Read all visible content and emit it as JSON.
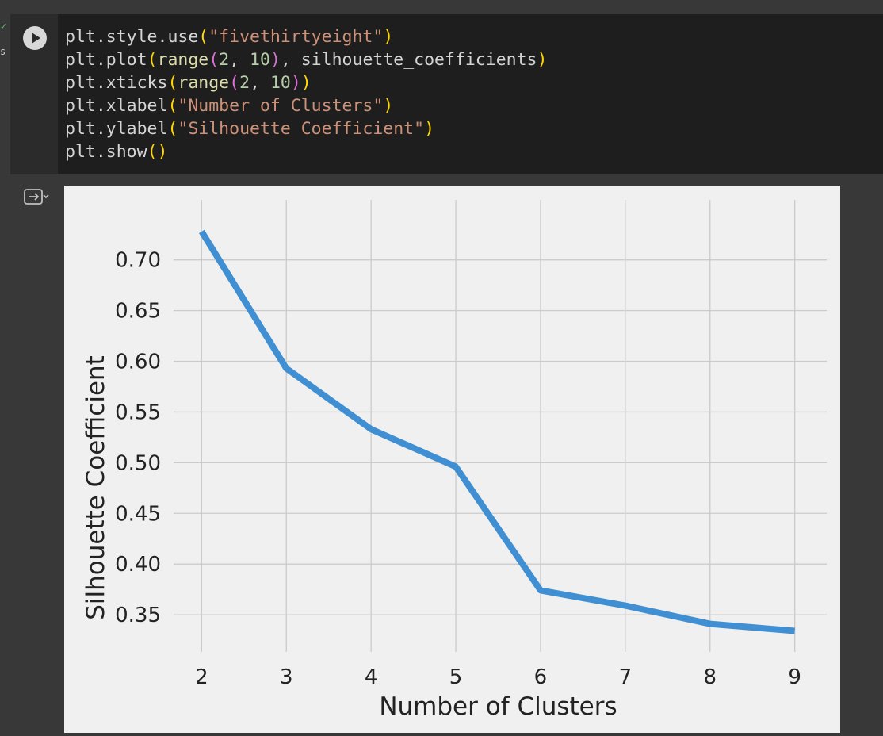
{
  "cell": {
    "exec_status": "s",
    "code_lines": [
      [
        {
          "t": "plt.style.use",
          "c": ""
        },
        {
          "t": "(",
          "c": "p1"
        },
        {
          "t": "\"fivethirtyeight\"",
          "c": "str"
        },
        {
          "t": ")",
          "c": "p1"
        }
      ],
      [
        {
          "t": "plt.plot",
          "c": ""
        },
        {
          "t": "(",
          "c": "p1"
        },
        {
          "t": "range",
          "c": "fn"
        },
        {
          "t": "(",
          "c": "p2"
        },
        {
          "t": "2",
          "c": "num"
        },
        {
          "t": ", ",
          "c": ""
        },
        {
          "t": "10",
          "c": "num"
        },
        {
          "t": ")",
          "c": "p2"
        },
        {
          "t": ", silhouette_coefficients",
          "c": ""
        },
        {
          "t": ")",
          "c": "p1"
        }
      ],
      [
        {
          "t": "plt.xticks",
          "c": ""
        },
        {
          "t": "(",
          "c": "p1"
        },
        {
          "t": "range",
          "c": "fn"
        },
        {
          "t": "(",
          "c": "p2"
        },
        {
          "t": "2",
          "c": "num"
        },
        {
          "t": ", ",
          "c": ""
        },
        {
          "t": "10",
          "c": "num"
        },
        {
          "t": ")",
          "c": "p2"
        },
        {
          "t": ")",
          "c": "p1"
        }
      ],
      [
        {
          "t": "plt.xlabel",
          "c": ""
        },
        {
          "t": "(",
          "c": "p1"
        },
        {
          "t": "\"Number of Clusters\"",
          "c": "str"
        },
        {
          "t": ")",
          "c": "p1"
        }
      ],
      [
        {
          "t": "plt.ylabel",
          "c": ""
        },
        {
          "t": "(",
          "c": "p1"
        },
        {
          "t": "\"Silhouette Coefficient\"",
          "c": "str"
        },
        {
          "t": ")",
          "c": "p1"
        }
      ],
      [
        {
          "t": "plt.show",
          "c": ""
        },
        {
          "t": "()",
          "c": "p1"
        }
      ]
    ]
  },
  "icons": {
    "run": "play-circle-icon",
    "output_toggle": "output-collapse-icon",
    "status": "check-icon"
  },
  "colors": {
    "line": "#3f8fd2",
    "figure_bg": "#f0f0f0",
    "grid": "#cbcbcb",
    "tick_text": "#222222"
  },
  "chart_data": {
    "type": "line",
    "style": "fivethirtyeight",
    "x": [
      2,
      3,
      4,
      5,
      6,
      7,
      8,
      9
    ],
    "y": [
      0.728,
      0.593,
      0.533,
      0.496,
      0.374,
      0.359,
      0.341,
      0.334
    ],
    "xlabel": "Number of Clusters",
    "ylabel": "Silhouette Coefficient",
    "xticks": [
      "2",
      "3",
      "4",
      "5",
      "6",
      "7",
      "8",
      "9"
    ],
    "yticks": [
      "0.35",
      "0.40",
      "0.45",
      "0.50",
      "0.55",
      "0.60",
      "0.65",
      "0.70"
    ],
    "xlim": [
      1.95,
      9.05
    ],
    "ylim": [
      0.318,
      0.742
    ],
    "grid": true,
    "legend": "none"
  }
}
